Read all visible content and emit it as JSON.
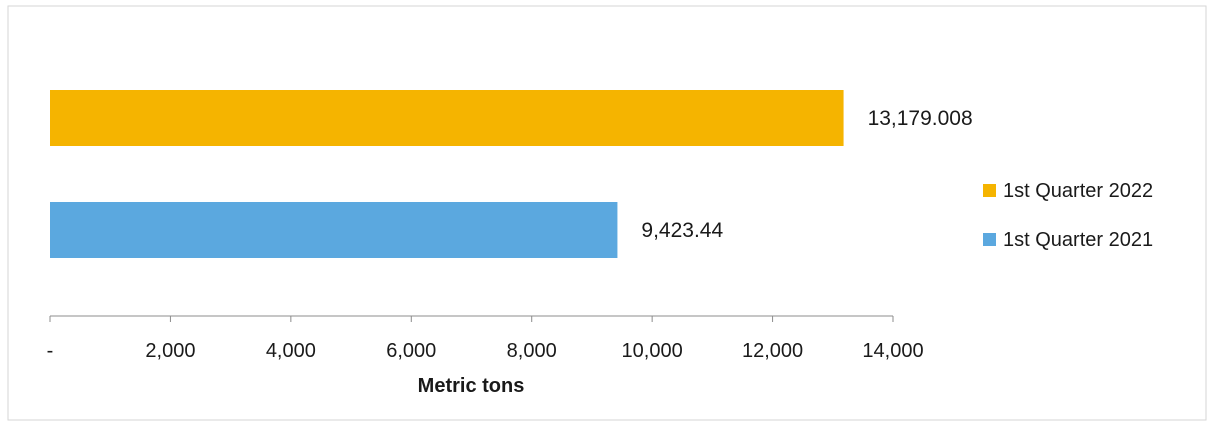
{
  "chart_data": {
    "type": "bar",
    "orientation": "horizontal",
    "xlabel": "Metric tons",
    "xlim": [
      0,
      14000
    ],
    "ticks": [
      {
        "value": 0,
        "label": "-"
      },
      {
        "value": 2000,
        "label": "2,000"
      },
      {
        "value": 4000,
        "label": "4,000"
      },
      {
        "value": 6000,
        "label": "6,000"
      },
      {
        "value": 8000,
        "label": "8,000"
      },
      {
        "value": 10000,
        "label": "10,000"
      },
      {
        "value": 12000,
        "label": "12,000"
      },
      {
        "value": 14000,
        "label": "14,000"
      }
    ],
    "series": [
      {
        "name": "1st Quarter 2022",
        "value": 13179.008,
        "label": "13,179.008",
        "color": "#F5B400"
      },
      {
        "name": "1st Quarter 2021",
        "value": 9423.44,
        "label": "9,423.44",
        "color": "#5BA8DF"
      }
    ],
    "legend_position": "right",
    "grid": false
  }
}
